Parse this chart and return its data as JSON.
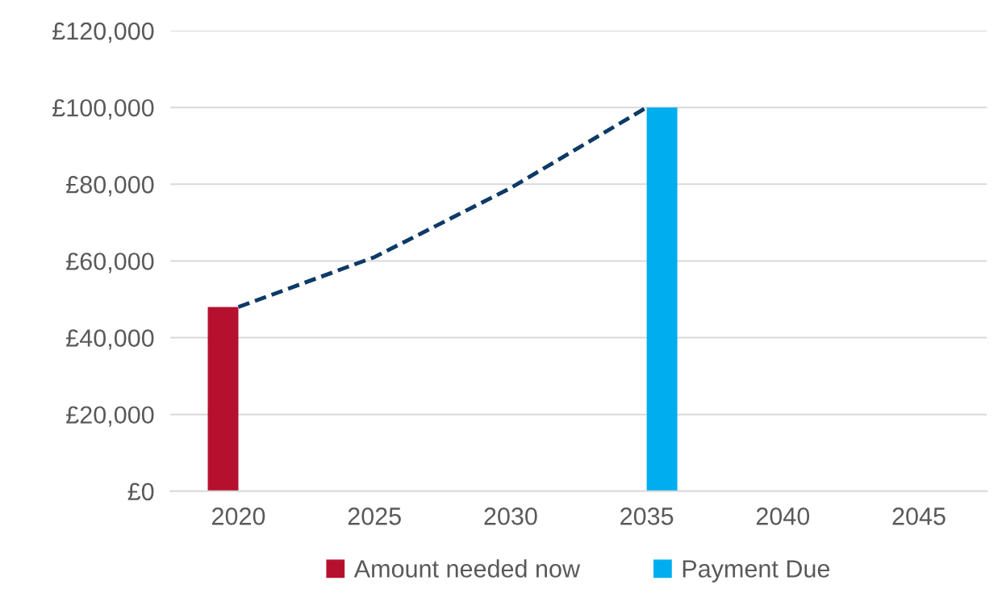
{
  "chart_data": {
    "type": "bar",
    "categories": [
      "2020",
      "2025",
      "2030",
      "2035",
      "2040",
      "2045"
    ],
    "series": [
      {
        "name": "Amount needed now",
        "color": "#b5112f",
        "values": [
          48000,
          null,
          null,
          null,
          null,
          null
        ]
      },
      {
        "name": "Payment Due",
        "color": "#00aeef",
        "values": [
          null,
          null,
          null,
          100000,
          null,
          null
        ]
      },
      {
        "type": "line",
        "color": "#0d3a66",
        "line_style": "dashed",
        "values": [
          48000,
          61000,
          79000,
          100000,
          null,
          null
        ]
      }
    ],
    "ylim": [
      0,
      120000
    ],
    "yticks": [
      {
        "value": 0,
        "label": "£0"
      },
      {
        "value": 20000,
        "label": "£20,000"
      },
      {
        "value": 40000,
        "label": "£40,000"
      },
      {
        "value": 60000,
        "label": "£60,000"
      },
      {
        "value": 80000,
        "label": "£80,000"
      },
      {
        "value": 100000,
        "label": "£100,000"
      },
      {
        "value": 120000,
        "label": "£120,000"
      }
    ],
    "grid": "y",
    "legend": "bottom"
  }
}
